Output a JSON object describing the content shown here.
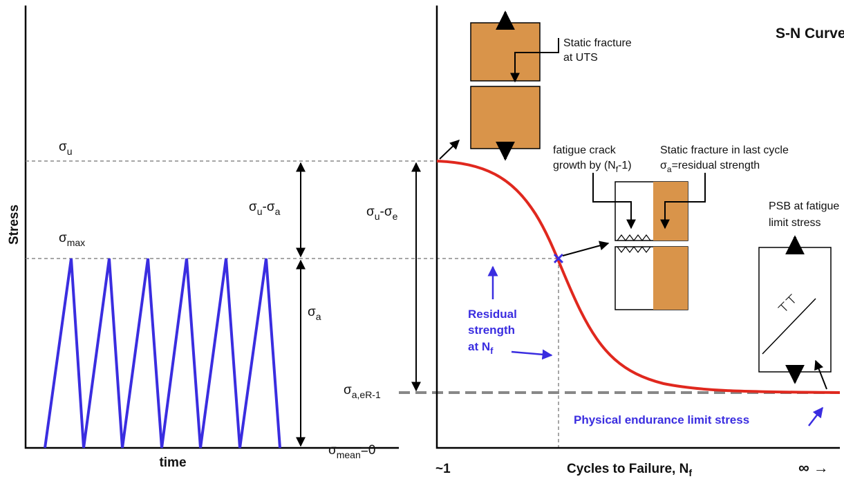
{
  "stress_time": {
    "y_label": "Stress",
    "x_label": "time",
    "sigma_u": [
      "σ",
      "u"
    ],
    "sigma_max": [
      "σ",
      "max"
    ],
    "sigma_u_minus_sigma_a": [
      "σ",
      "u",
      "-σ",
      "a"
    ],
    "sigma_a": [
      "σ",
      "a"
    ],
    "sigma_mean": [
      "σ",
      "mean",
      "=0"
    ],
    "sigma_u_minus_sigma_e": [
      "σ",
      "u",
      "-σ",
      "e"
    ],
    "sigma_a_eR": [
      "σ",
      "a,eR-1"
    ]
  },
  "sn_curve": {
    "title": "S-N Curve",
    "x_label": [
      "Cycles to Failure, N",
      "f"
    ],
    "x_start": "~1",
    "x_end": "∞ →",
    "static_fracture": [
      "Static fracture",
      "at UTS"
    ],
    "crack_growth": [
      "fatigue crack",
      "growth by (N",
      "f",
      "-1)"
    ],
    "last_cycle": [
      "Static fracture in last cycle",
      "σ",
      "a",
      "=residual strength"
    ],
    "psb": [
      "PSB at fatigue",
      "limit stress"
    ],
    "psb_symbol": "⊥⊥",
    "residual_strength": [
      "Residual",
      "strength",
      "at N",
      "f"
    ],
    "endurance_limit": "Physical endurance limit stress"
  }
}
